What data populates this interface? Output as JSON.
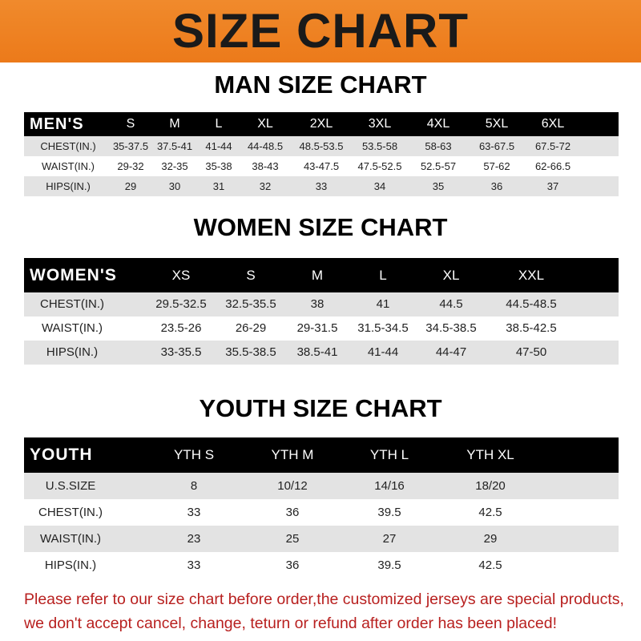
{
  "banner_title": "SIZE CHART",
  "men": {
    "title": "MAN SIZE CHART",
    "header_label": "MEN'S",
    "sizes": [
      "S",
      "M",
      "L",
      "XL",
      "2XL",
      "3XL",
      "4XL",
      "5XL",
      "6XL"
    ],
    "rows": [
      {
        "label": "CHEST(IN.)",
        "values": [
          "35-37.5",
          "37.5-41",
          "41-44",
          "44-48.5",
          "48.5-53.5",
          "53.5-58",
          "58-63",
          "63-67.5",
          "67.5-72"
        ]
      },
      {
        "label": "WAIST(IN.)",
        "values": [
          "29-32",
          "32-35",
          "35-38",
          "38-43",
          "43-47.5",
          "47.5-52.5",
          "52.5-57",
          "57-62",
          "62-66.5"
        ]
      },
      {
        "label": "HIPS(IN.)",
        "values": [
          "29",
          "30",
          "31",
          "32",
          "33",
          "34",
          "35",
          "36",
          "37"
        ]
      }
    ]
  },
  "women": {
    "title": "WOMEN SIZE CHART",
    "header_label": "WOMEN'S",
    "sizes": [
      "XS",
      "S",
      "M",
      "L",
      "XL",
      "XXL"
    ],
    "rows": [
      {
        "label": "CHEST(IN.)",
        "values": [
          "29.5-32.5",
          "32.5-35.5",
          "38",
          "41",
          "44.5",
          "44.5-48.5"
        ]
      },
      {
        "label": "WAIST(IN.)",
        "values": [
          "23.5-26",
          "26-29",
          "29-31.5",
          "31.5-34.5",
          "34.5-38.5",
          "38.5-42.5"
        ]
      },
      {
        "label": "HIPS(IN.)",
        "values": [
          "33-35.5",
          "35.5-38.5",
          "38.5-41",
          "41-44",
          "44-47",
          "47-50"
        ]
      }
    ]
  },
  "youth": {
    "title": "YOUTH SIZE CHART",
    "header_label": "YOUTH",
    "sizes": [
      "YTH S",
      "YTH M",
      "YTH L",
      "YTH XL"
    ],
    "rows": [
      {
        "label": "U.S.SIZE",
        "values": [
          "8",
          "10/12",
          "14/16",
          "18/20"
        ]
      },
      {
        "label": "CHEST(IN.)",
        "values": [
          "33",
          "36",
          "39.5",
          "42.5"
        ]
      },
      {
        "label": "WAIST(IN.)",
        "values": [
          "23",
          "25",
          "27",
          "29"
        ]
      },
      {
        "label": "HIPS(IN.)",
        "values": [
          "33",
          "36",
          "39.5",
          "42.5"
        ]
      }
    ]
  },
  "notice": [
    "Please refer to our size chart before order,the customized jerseys are special products,",
    "we don't accept cancel, change, teturn or refund after order has been placed!"
  ],
  "colors": {
    "banner": "#ec7a1a",
    "header_row": "#000000",
    "stripe": "#e3e3e3",
    "notice": "#b8201f"
  }
}
